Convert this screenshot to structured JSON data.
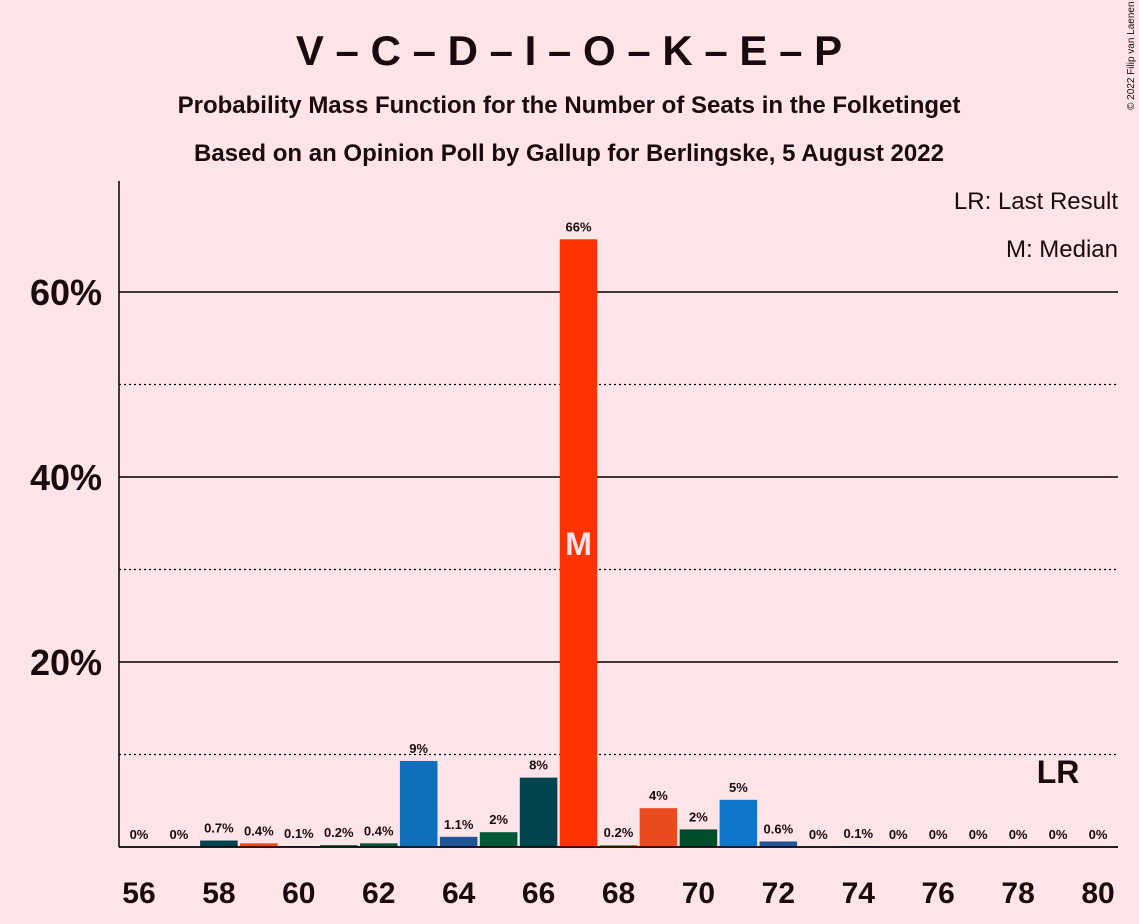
{
  "chart_data": {
    "type": "bar",
    "title": "V – C – D – I – O – K – E – P",
    "subtitle": "Probability Mass Function for the Number of Seats in the Folketinget",
    "subtitle2": "Based on an Opinion Poll by Gallup for Berlingske, 5 August 2022",
    "copyright": "© 2022 Filip van Laenen",
    "legend": [
      "LR: Last Result",
      "M: Median"
    ],
    "x": [
      56,
      57,
      58,
      59,
      60,
      61,
      62,
      63,
      64,
      65,
      66,
      67,
      68,
      69,
      70,
      71,
      72,
      73,
      74,
      75,
      76,
      77,
      78,
      79,
      80
    ],
    "values": [
      0,
      0,
      0.7,
      0.4,
      0.1,
      0.2,
      0.4,
      9.3,
      1.1,
      1.6,
      7.5,
      65.7,
      0.2,
      4.2,
      1.9,
      5.1,
      0.6,
      0,
      0.1,
      0,
      0,
      0,
      0,
      0,
      0
    ],
    "value_labels": [
      "0%",
      "0%",
      "0.7%",
      "0.4%",
      "0.1%",
      "0.2%",
      "0.4%",
      "9%",
      "1.1%",
      "2%",
      "8%",
      "66%",
      "0.2%",
      "4%",
      "2%",
      "5%",
      "0.6%",
      "0%",
      "0.1%",
      "0%",
      "0%",
      "0%",
      "0%",
      "0%",
      "0%"
    ],
    "colors": [
      "#00434f",
      "#00434f",
      "#00434f",
      "#e84c1e",
      "#1d5596",
      "#00583c",
      "#00583c",
      "#0e70b8",
      "#1d5596",
      "#00583c",
      "#004450",
      "#ff3300",
      "#e84c1e",
      "#e84c1e",
      "#004d2c",
      "#0c76c8",
      "#1d5596",
      "#1d5596",
      "#1d5596",
      "#1d5596",
      "#1d5596",
      "#1d5596",
      "#1d5596",
      "#1d5596",
      "#1d5596"
    ],
    "xlim": [
      55.5,
      80.5
    ],
    "xticks": [
      56,
      58,
      60,
      62,
      64,
      66,
      68,
      70,
      72,
      74,
      76,
      78,
      80
    ],
    "ylim": [
      0,
      72
    ],
    "yticks": [
      0,
      {
        "value": 20,
        "label": "20%"
      },
      {
        "value": 40,
        "label": "40%"
      },
      {
        "value": 60,
        "label": "60%"
      }
    ],
    "minor_grid": [
      10,
      30,
      50
    ],
    "median": {
      "x": 67,
      "label": "M"
    },
    "last_result": {
      "x": 79,
      "label": "LR"
    }
  }
}
